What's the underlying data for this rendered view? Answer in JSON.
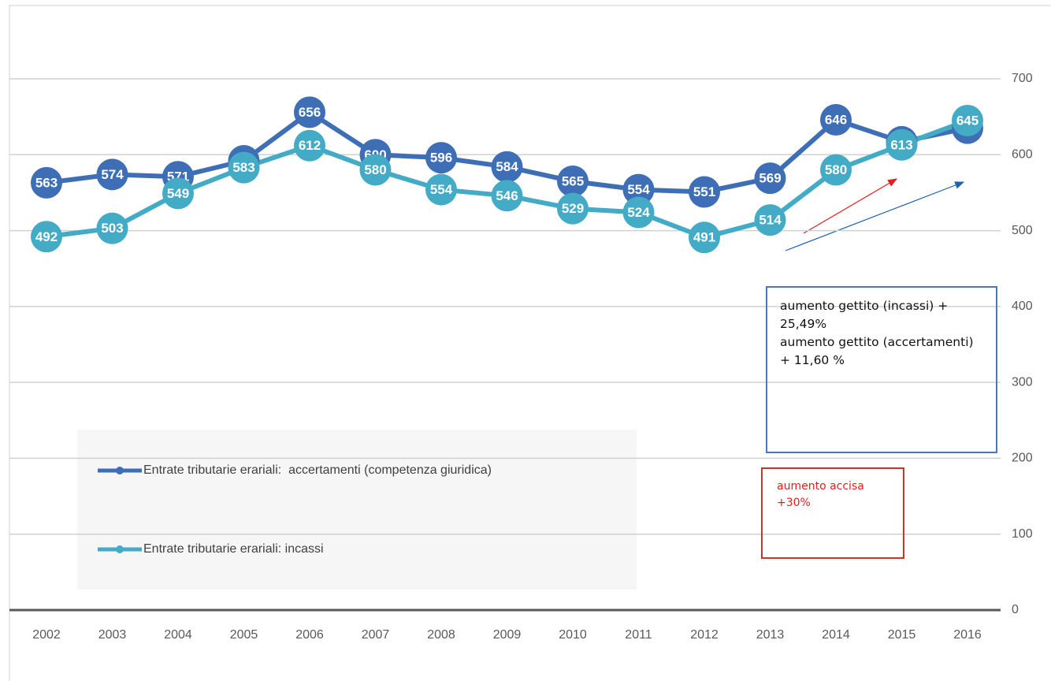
{
  "chart_data": {
    "type": "line",
    "categories": [
      "2002",
      "2003",
      "2004",
      "2005",
      "2006",
      "2007",
      "2008",
      "2009",
      "2010",
      "2011",
      "2012",
      "2013",
      "2014",
      "2015",
      "2016"
    ],
    "series": [
      {
        "name": "Entrate tributarie erariali:  accertamenti (competenza giuridica)",
        "color": "#3e6fb6",
        "values": [
          563,
          574,
          571,
          592,
          656,
          600,
          596,
          584,
          565,
          554,
          551,
          569,
          646,
          617,
          635
        ]
      },
      {
        "name": "Entrate tributarie erariali: incassi",
        "color": "#44abc6",
        "values": [
          492,
          503,
          549,
          583,
          612,
          580,
          554,
          546,
          529,
          524,
          491,
          514,
          580,
          613,
          645
        ]
      }
    ],
    "ylim": [
      0,
      700
    ],
    "yticks": [
      0,
      100,
      200,
      300,
      400,
      500,
      600,
      700
    ],
    "grid": true,
    "annotations": [
      "aumento gettito (incassi) + 25,49%",
      "aumento gettito (accertamenti) + 11,60 %",
      "aumento accisa +30%"
    ]
  }
}
